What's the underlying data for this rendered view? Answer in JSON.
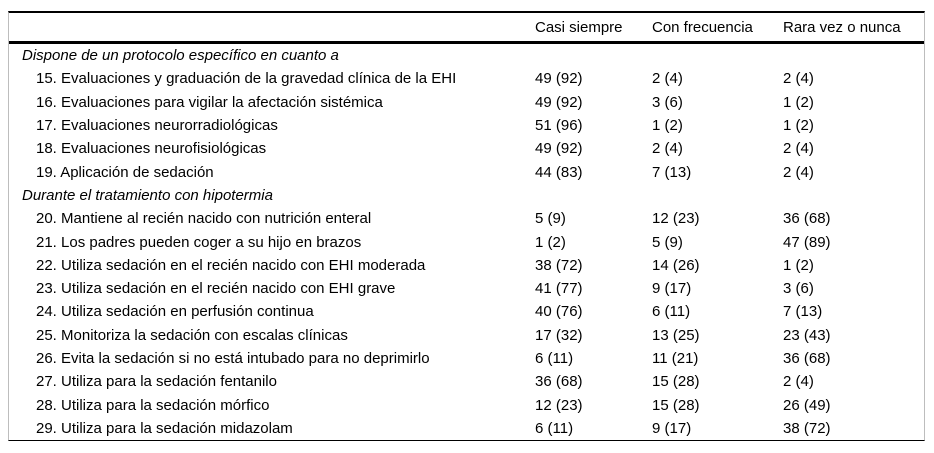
{
  "table": {
    "header": {
      "casi_siempre": "Casi siempre",
      "con_frecuencia": "Con frecuencia",
      "rara_vez": "Rara vez o nunca"
    },
    "sections": [
      {
        "title": "Dispone de un protocolo específico en cuanto a",
        "rows": [
          {
            "label": "15. Evaluaciones y graduación de la gravedad clínica de la EHI",
            "values": [
              "49 (92)",
              "2 (4)",
              "2 (4)"
            ]
          },
          {
            "label": "16. Evaluaciones para vigilar la afectación sistémica",
            "values": [
              "49 (92)",
              "3 (6)",
              "1 (2)"
            ]
          },
          {
            "label": "17. Evaluaciones neurorradiológicas",
            "values": [
              "51 (96)",
              "1 (2)",
              "1 (2)"
            ]
          },
          {
            "label": "18. Evaluaciones neurofisiológicas",
            "values": [
              "49 (92)",
              "2 (4)",
              "2 (4)"
            ]
          },
          {
            "label": "19. Aplicación de sedación",
            "values": [
              "44 (83)",
              "7 (13)",
              "2 (4)"
            ]
          }
        ]
      },
      {
        "title": "Durante el tratamiento con hipotermia",
        "rows": [
          {
            "label": "20. Mantiene al recién nacido con nutrición enteral",
            "values": [
              "5 (9)",
              "12 (23)",
              "36 (68)"
            ]
          },
          {
            "label": "21. Los padres pueden coger a su hijo en brazos",
            "values": [
              "1 (2)",
              "5 (9)",
              "47 (89)"
            ]
          },
          {
            "label": "22. Utiliza sedación en el recién nacido con EHI moderada",
            "values": [
              "38 (72)",
              "14 (26)",
              "1 (2)"
            ]
          },
          {
            "label": "23. Utiliza sedación en el recién nacido con EHI grave",
            "values": [
              "41 (77)",
              "9 (17)",
              "3 (6)"
            ]
          },
          {
            "label": "24. Utiliza sedación en perfusión continua",
            "values": [
              "40 (76)",
              "6 (11)",
              "7 (13)"
            ]
          },
          {
            "label": "25. Monitoriza la sedación con escalas clínicas",
            "values": [
              "17 (32)",
              "13 (25)",
              "23 (43)"
            ]
          },
          {
            "label": "26. Evita la sedación si no está intubado para no deprimirlo",
            "values": [
              "6 (11)",
              "11 (21)",
              "36 (68)"
            ]
          },
          {
            "label": "27. Utiliza para la sedación fentanilo",
            "values": [
              "36 (68)",
              "15 (28)",
              "2 (4)"
            ]
          },
          {
            "label": "28. Utiliza para la sedación mórfico",
            "values": [
              "12 (23)",
              "15 (28)",
              "26 (49)"
            ]
          },
          {
            "label": "29. Utiliza para la sedación midazolam",
            "values": [
              "6 (11)",
              "9 (17)",
              "38 (72)"
            ]
          }
        ]
      }
    ],
    "colors": {
      "rule": "#000000",
      "side_border": "#bdbdbd",
      "text": "#000000",
      "background": "#ffffff"
    }
  }
}
